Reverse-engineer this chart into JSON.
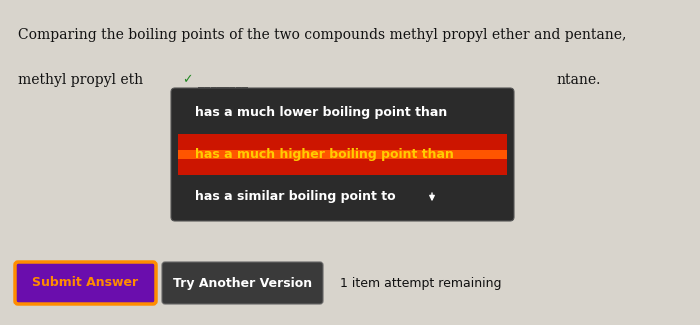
{
  "bg_color": "#d8d4cc",
  "title_line1": "Comparing the boiling points of the two compounds methyl propyl ether and pentane,",
  "sentence_left": "methyl propyl eth",
  "checkmark": "✓",
  "sentence_right": "ntane.",
  "dropdown_bg": "#2b2b2b",
  "option1": "has a much lower boiling point than",
  "option2": "has a much higher boiling point than",
  "option3": "has a similar boiling point to",
  "option1_color": "#ffffff",
  "option2_color": "#ffcc00",
  "option3_color": "#ffffff",
  "highlight_color": "#cc1500",
  "highlight_stripe_color": "#ff5500",
  "submit_btn_text": "Submit Answer",
  "submit_btn_bg": "#6a0dad",
  "submit_btn_border": "#ff8c00",
  "try_btn_text": "Try Another Version",
  "try_btn_bg": "#3a3a3a",
  "remaining_text": "1 item attempt remaining",
  "font_color_dark": "#111111",
  "font_color_light": "#ffffff",
  "checkmark_color": "#228822"
}
